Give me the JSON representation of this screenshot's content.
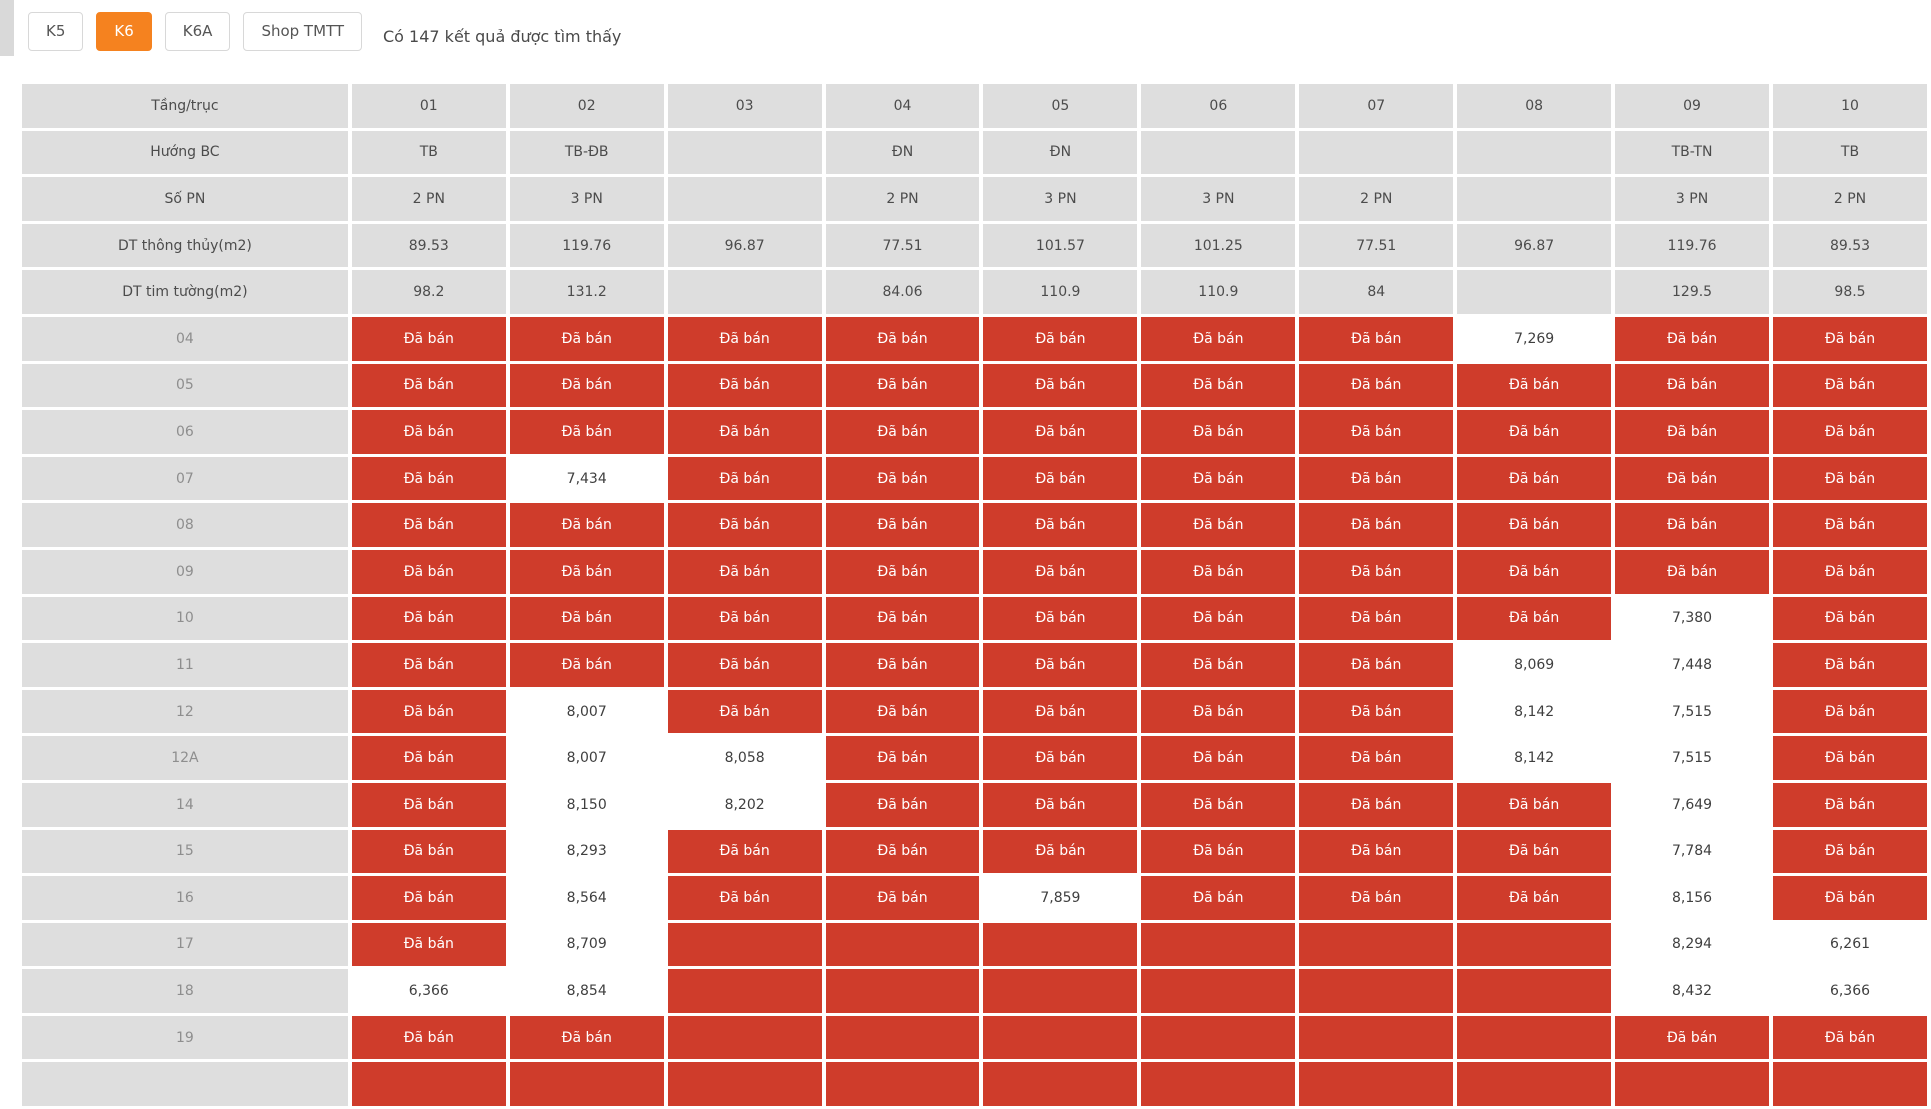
{
  "page": {
    "result_text": "Có 147 kết quả được tìm thấy"
  },
  "tabs": [
    {
      "id": "k5",
      "label": "K5",
      "active": false
    },
    {
      "id": "k6",
      "label": "K6",
      "active": true
    },
    {
      "id": "k6a",
      "label": "K6A",
      "active": false
    },
    {
      "id": "shop-tmtt",
      "label": "Shop TMTT",
      "active": false
    }
  ],
  "table": {
    "corner_label": "Tầng/trục",
    "columns": [
      "01",
      "02",
      "03",
      "04",
      "05",
      "06",
      "07",
      "08",
      "09",
      "10"
    ],
    "header_rows": [
      {
        "id": "huong-bc",
        "label": "Hướng BC",
        "values": [
          "TB",
          "TB-ĐB",
          "",
          "ĐN",
          "ĐN",
          "",
          "",
          "",
          "TB-TN",
          "TB"
        ]
      },
      {
        "id": "so-pn",
        "label": "Số PN",
        "values": [
          "2 PN",
          "3 PN",
          "",
          "2 PN",
          "3 PN",
          "3 PN",
          "2 PN",
          "",
          "3 PN",
          "2 PN"
        ]
      },
      {
        "id": "dt-thong-thuy",
        "label": "DT thông thủy(m2)",
        "values": [
          "89.53",
          "119.76",
          "96.87",
          "77.51",
          "101.57",
          "101.25",
          "77.51",
          "96.87",
          "119.76",
          "89.53"
        ]
      },
      {
        "id": "dt-tim-tuong",
        "label": "DT tim tường(m2)",
        "values": [
          "98.2",
          "131.2",
          "",
          "84.06",
          "110.9",
          "110.9",
          "84",
          "",
          "129.5",
          "98.5"
        ]
      }
    ],
    "sold_label": "Đã bán",
    "rows": [
      {
        "label": "04",
        "cells": [
          "sold",
          "sold",
          "sold",
          "sold",
          "sold",
          "sold",
          "sold",
          "7,269",
          "sold",
          "sold"
        ]
      },
      {
        "label": "05",
        "cells": [
          "sold",
          "sold",
          "sold",
          "sold",
          "sold",
          "sold",
          "sold",
          "sold",
          "sold",
          "sold"
        ]
      },
      {
        "label": "06",
        "cells": [
          "sold",
          "sold",
          "sold",
          "sold",
          "sold",
          "sold",
          "sold",
          "sold",
          "sold",
          "sold"
        ]
      },
      {
        "label": "07",
        "cells": [
          "sold",
          "7,434",
          "sold",
          "sold",
          "sold",
          "sold",
          "sold",
          "sold",
          "sold",
          "sold"
        ]
      },
      {
        "label": "08",
        "cells": [
          "sold",
          "sold",
          "sold",
          "sold",
          "sold",
          "sold",
          "sold",
          "sold",
          "sold",
          "sold"
        ]
      },
      {
        "label": "09",
        "cells": [
          "sold",
          "sold",
          "sold",
          "sold",
          "sold",
          "sold",
          "sold",
          "sold",
          "sold",
          "sold"
        ]
      },
      {
        "label": "10",
        "cells": [
          "sold",
          "sold",
          "sold",
          "sold",
          "sold",
          "sold",
          "sold",
          "sold",
          "7,380",
          "sold"
        ]
      },
      {
        "label": "11",
        "cells": [
          "sold",
          "sold",
          "sold",
          "sold",
          "sold",
          "sold",
          "sold",
          "8,069",
          "7,448",
          "sold"
        ]
      },
      {
        "label": "12",
        "cells": [
          "sold",
          "8,007",
          "sold",
          "sold",
          "sold",
          "sold",
          "sold",
          "8,142",
          "7,515",
          "sold"
        ]
      },
      {
        "label": "12A",
        "cells": [
          "sold",
          "8,007",
          "8,058",
          "sold",
          "sold",
          "sold",
          "sold",
          "8,142",
          "7,515",
          "sold"
        ]
      },
      {
        "label": "14",
        "cells": [
          "sold",
          "8,150",
          "8,202",
          "sold",
          "sold",
          "sold",
          "sold",
          "sold",
          "7,649",
          "sold"
        ]
      },
      {
        "label": "15",
        "cells": [
          "sold",
          "8,293",
          "sold",
          "sold",
          "sold",
          "sold",
          "sold",
          "sold",
          "7,784",
          "sold"
        ]
      },
      {
        "label": "16",
        "cells": [
          "sold",
          "8,564",
          "sold",
          "sold",
          "7,859",
          "sold",
          "sold",
          "sold",
          "8,156",
          "sold"
        ]
      },
      {
        "label": "17",
        "cells": [
          "sold",
          "8,709",
          "blank",
          "blank",
          "blank",
          "blank",
          "blank",
          "blank",
          "8,294",
          "6,261"
        ]
      },
      {
        "label": "18",
        "cells": [
          "6,366",
          "8,854",
          "blank",
          "blank",
          "blank",
          "blank",
          "blank",
          "blank",
          "8,432",
          "6,366"
        ]
      },
      {
        "label": "19",
        "cells": [
          "sold",
          "sold",
          "blank",
          "blank",
          "blank",
          "blank",
          "blank",
          "blank",
          "sold",
          "sold"
        ]
      }
    ],
    "cutoff_row": {
      "label": "",
      "cells": [
        "blank",
        "blank",
        "blank",
        "blank",
        "blank",
        "blank",
        "blank",
        "blank",
        "blank",
        "blank"
      ]
    }
  },
  "colors": {
    "sold_bg": "#cf3c2b",
    "active_tab_bg": "#f5821f",
    "header_bg": "#dedede"
  }
}
